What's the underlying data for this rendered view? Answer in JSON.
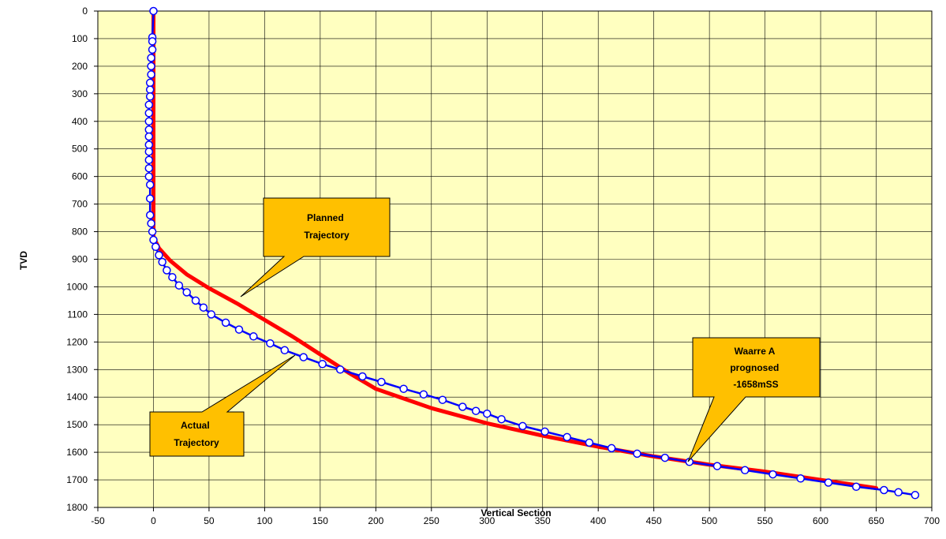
{
  "chart_data": {
    "type": "line",
    "xlabel": "Vertical Section",
    "ylabel": "TVD",
    "xlim": [
      -50,
      700
    ],
    "ylim": [
      1800,
      0
    ],
    "x_ticks": [
      -50,
      0,
      50,
      100,
      150,
      200,
      250,
      300,
      350,
      400,
      450,
      500,
      550,
      600,
      650,
      700
    ],
    "y_ticks": [
      0,
      100,
      200,
      300,
      400,
      500,
      600,
      700,
      800,
      900,
      1000,
      1100,
      1200,
      1300,
      1400,
      1500,
      1600,
      1700,
      1800
    ],
    "grid": true,
    "plot_background": "#ffffc0",
    "series": [
      {
        "key": "planned",
        "color": "#ff0000",
        "marker": "none",
        "points": [
          [
            0,
            0
          ],
          [
            0,
            820
          ],
          [
            5,
            860
          ],
          [
            15,
            905
          ],
          [
            30,
            955
          ],
          [
            50,
            1005
          ],
          [
            75,
            1060
          ],
          [
            100,
            1120
          ],
          [
            125,
            1180
          ],
          [
            150,
            1245
          ],
          [
            175,
            1310
          ],
          [
            200,
            1370
          ],
          [
            250,
            1440
          ],
          [
            300,
            1495
          ],
          [
            350,
            1540
          ],
          [
            400,
            1580
          ],
          [
            450,
            1615
          ],
          [
            500,
            1645
          ],
          [
            550,
            1670
          ],
          [
            600,
            1700
          ],
          [
            650,
            1730
          ]
        ]
      },
      {
        "key": "actual",
        "color": "#0000ff",
        "marker": "circle",
        "points": [
          [
            0,
            0
          ],
          [
            -1,
            95
          ],
          [
            -1,
            110
          ],
          [
            -1,
            140
          ],
          [
            -2,
            170
          ],
          [
            -2,
            200
          ],
          [
            -2,
            230
          ],
          [
            -3,
            260
          ],
          [
            -3,
            285
          ],
          [
            -3,
            310
          ],
          [
            -4,
            340
          ],
          [
            -4,
            370
          ],
          [
            -4,
            400
          ],
          [
            -4,
            430
          ],
          [
            -4,
            455
          ],
          [
            -4,
            485
          ],
          [
            -4,
            510
          ],
          [
            -4,
            540
          ],
          [
            -4,
            570
          ],
          [
            -4,
            600
          ],
          [
            -3,
            630
          ],
          [
            -3,
            680
          ],
          [
            -3,
            740
          ],
          [
            -2,
            770
          ],
          [
            -1,
            800
          ],
          [
            0,
            830
          ],
          [
            2,
            855
          ],
          [
            5,
            885
          ],
          [
            8,
            910
          ],
          [
            12,
            940
          ],
          [
            17,
            965
          ],
          [
            23,
            995
          ],
          [
            30,
            1020
          ],
          [
            38,
            1050
          ],
          [
            45,
            1075
          ],
          [
            52,
            1100
          ],
          [
            65,
            1130
          ],
          [
            77,
            1155
          ],
          [
            90,
            1180
          ],
          [
            105,
            1205
          ],
          [
            118,
            1230
          ],
          [
            135,
            1255
          ],
          [
            152,
            1280
          ],
          [
            168,
            1300
          ],
          [
            188,
            1325
          ],
          [
            205,
            1345
          ],
          [
            225,
            1370
          ],
          [
            243,
            1390
          ],
          [
            260,
            1410
          ],
          [
            278,
            1435
          ],
          [
            290,
            1450
          ],
          [
            300,
            1460
          ],
          [
            313,
            1480
          ],
          [
            332,
            1505
          ],
          [
            352,
            1525
          ],
          [
            372,
            1545
          ],
          [
            392,
            1565
          ],
          [
            412,
            1585
          ],
          [
            435,
            1605
          ],
          [
            460,
            1620
          ],
          [
            482,
            1635
          ],
          [
            507,
            1650
          ],
          [
            532,
            1665
          ],
          [
            557,
            1680
          ],
          [
            582,
            1695
          ],
          [
            607,
            1710
          ],
          [
            632,
            1725
          ],
          [
            657,
            1737
          ],
          [
            670,
            1745
          ],
          [
            685,
            1755
          ]
        ]
      }
    ],
    "annotations": [
      {
        "key": "planned",
        "lines": [
          "Planned",
          "Trajectory"
        ]
      },
      {
        "key": "actual",
        "lines": [
          "Actual",
          "Trajectory"
        ]
      },
      {
        "key": "waarre",
        "lines": [
          "Waarre A",
          "prognosed",
          "-1658mSS"
        ]
      }
    ]
  }
}
